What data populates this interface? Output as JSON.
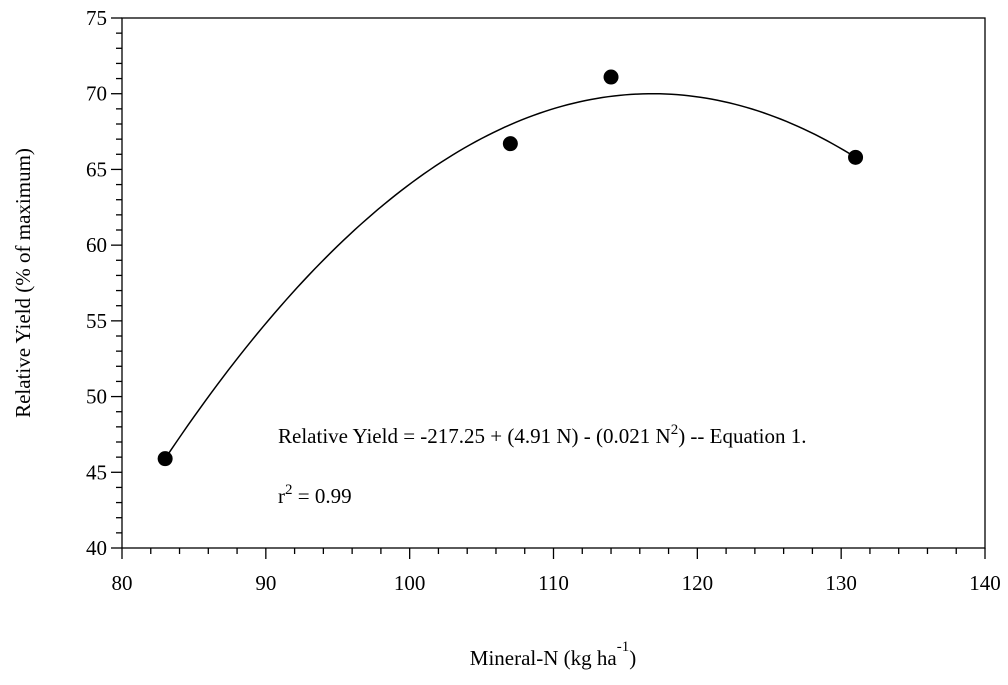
{
  "chart_data": {
    "type": "scatter",
    "title": "",
    "xlabel": "Mineral-N (kg ha",
    "xlabel_sup": "-1",
    "xlabel_tail": ")",
    "ylabel": "Relative Yield (% of maximum)",
    "xlim": [
      80,
      140
    ],
    "ylim": [
      40,
      75
    ],
    "x_ticks": [
      80,
      90,
      100,
      110,
      120,
      130,
      140
    ],
    "y_ticks": [
      40,
      45,
      50,
      55,
      60,
      65,
      70,
      75
    ],
    "x_minor_step": 2,
    "y_minor_step": 1,
    "grid": false,
    "series": [
      {
        "points": [
          {
            "x": 83,
            "y": 45.9
          },
          {
            "x": 107,
            "y": 66.7
          },
          {
            "x": 114,
            "y": 71.1
          },
          {
            "x": 131,
            "y": 65.8
          }
        ]
      }
    ],
    "fit": {
      "type": "quadratic",
      "x_range": [
        83,
        131
      ],
      "peak": {
        "x": 117,
        "y": 70.0
      },
      "points": [
        {
          "x": 83,
          "y": 45.9
        },
        {
          "x": 117,
          "y": 70.0
        },
        {
          "x": 131,
          "y": 65.8
        }
      ]
    },
    "annotations": {
      "equation_prefix": "Relative Yield = -217.25 + (4.91 N) - (0.021 N",
      "equation_sup": "2",
      "equation_suffix": ")  --  Equation 1.",
      "r2_prefix": "r",
      "r2_sup": "2",
      "r2_suffix": " = 0.99"
    }
  }
}
